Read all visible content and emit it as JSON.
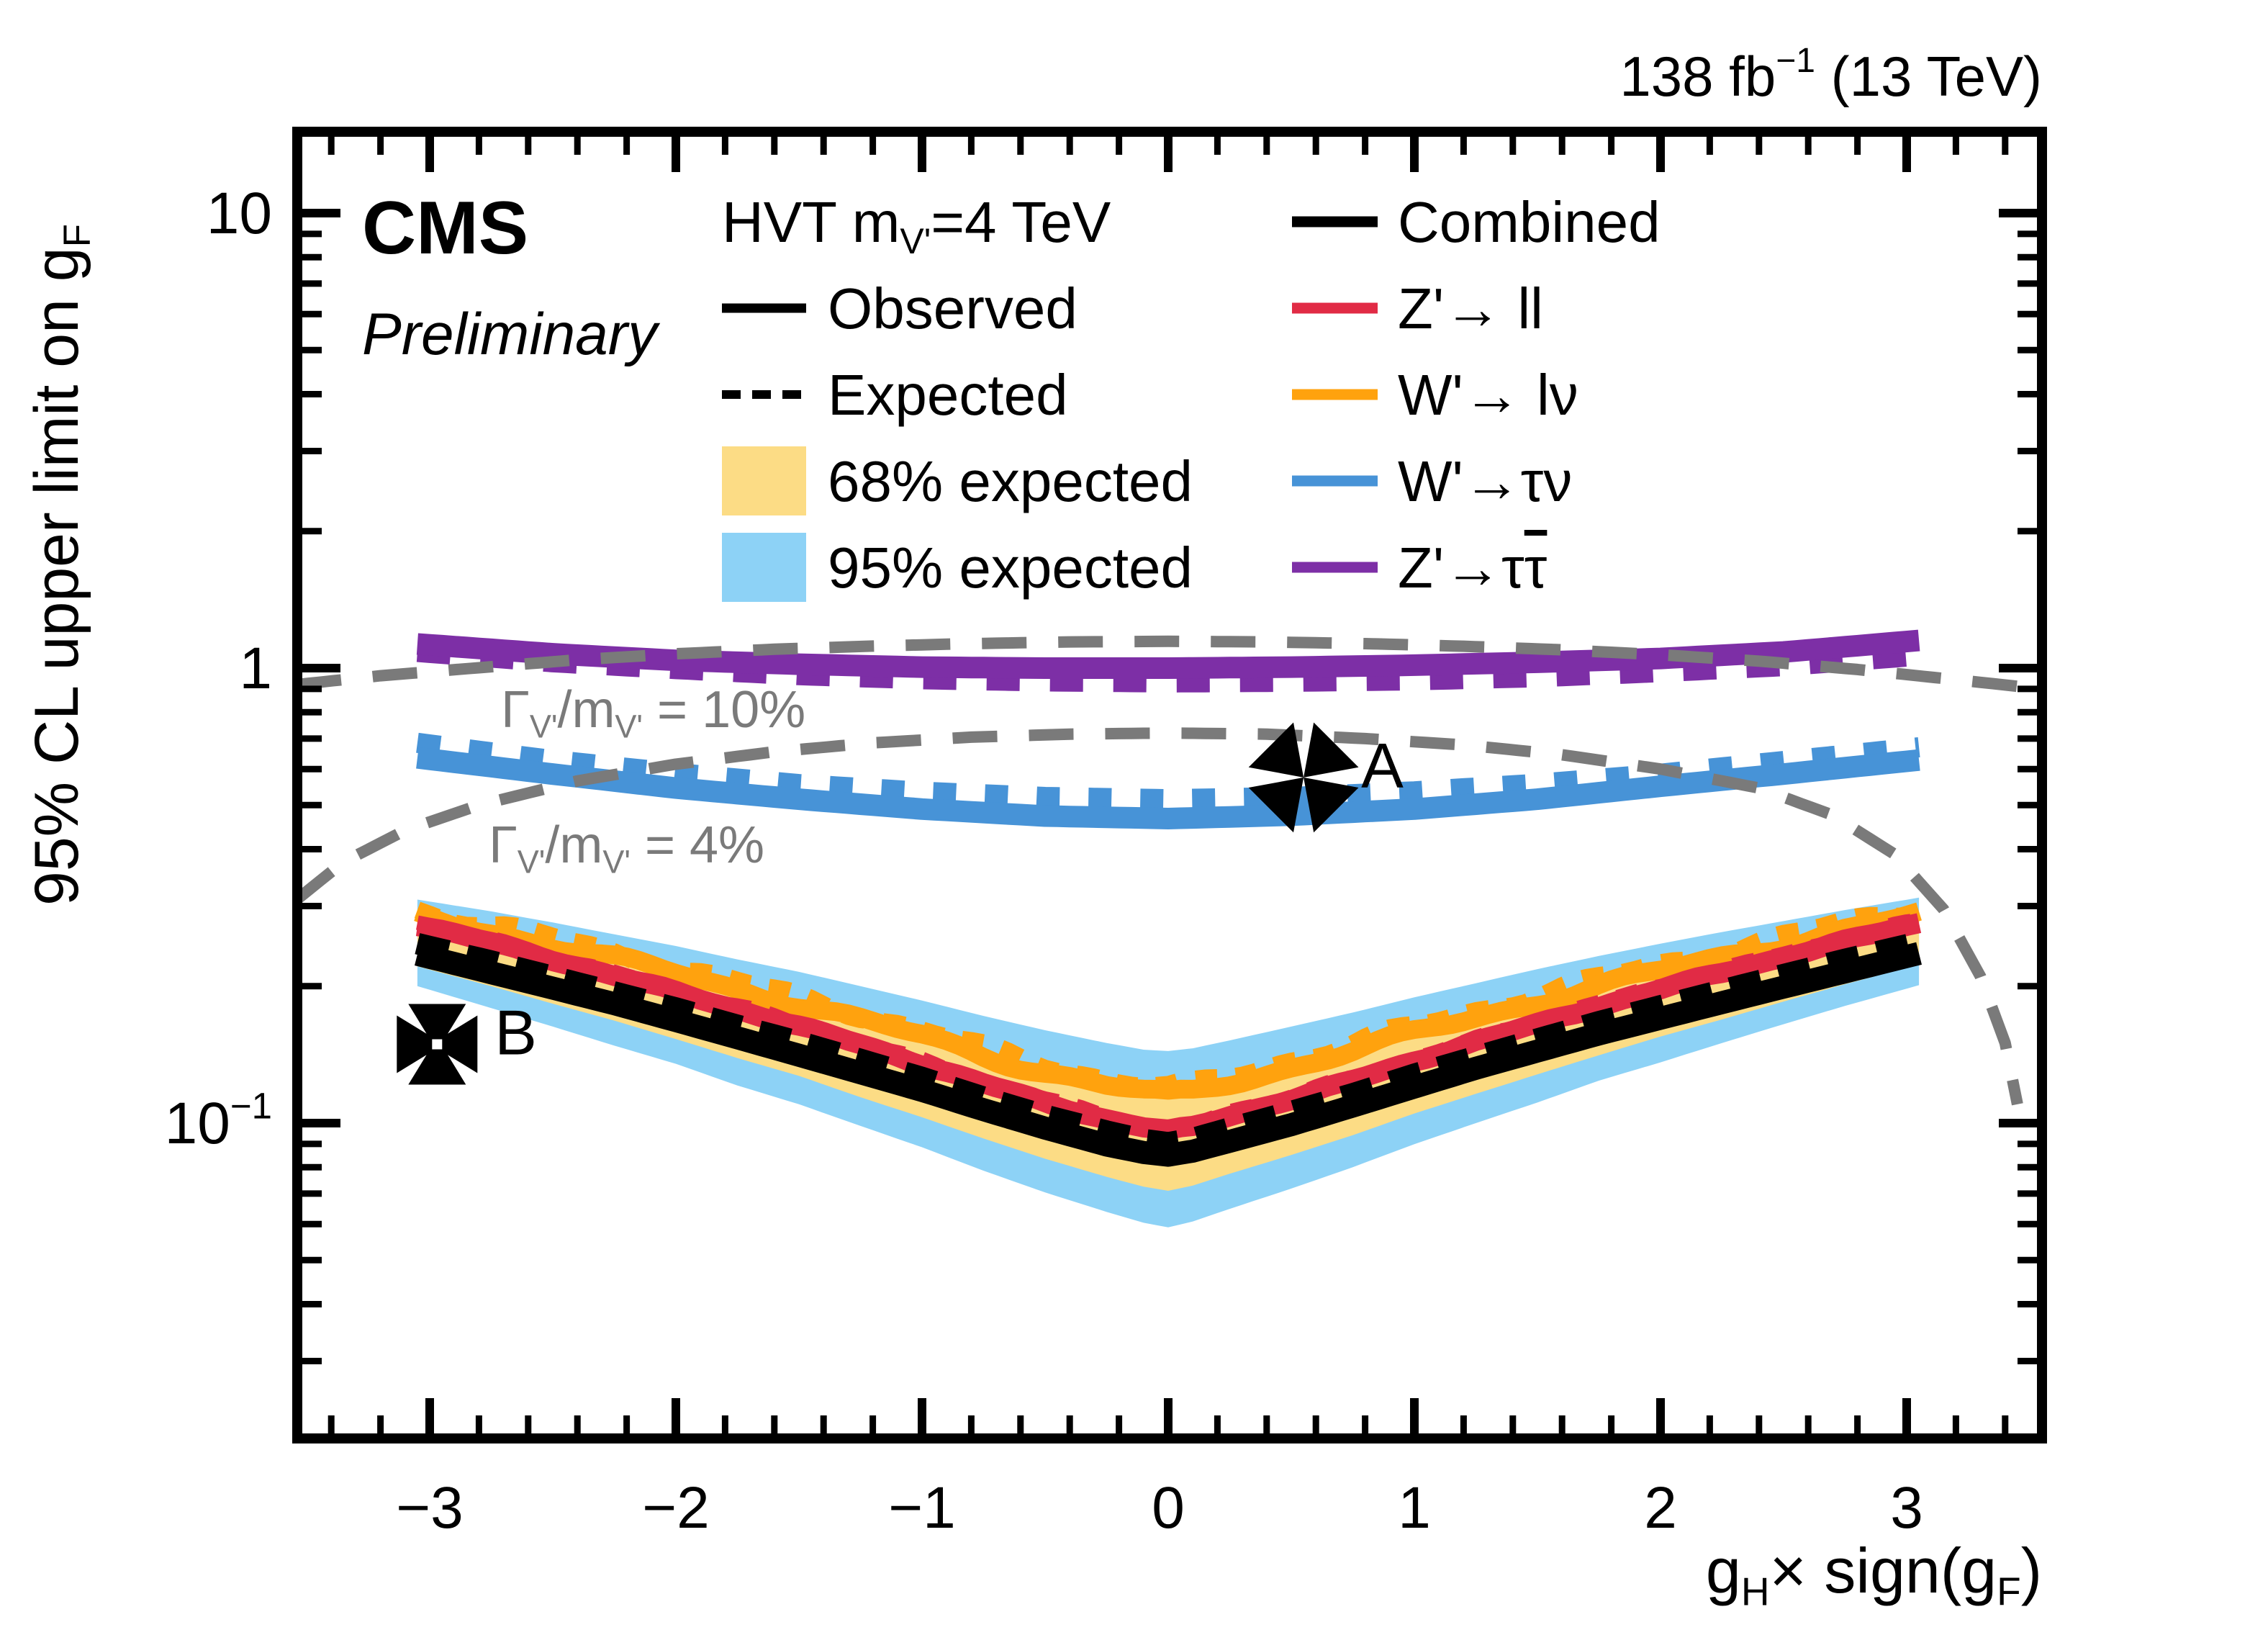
{
  "header": {
    "experiment": "CMS",
    "status": "Preliminary",
    "lumi_parts": [
      [
        "138 fb",
        ""
      ],
      [
        "−1",
        "sup"
      ],
      [
        " (13 TeV)",
        ""
      ]
    ]
  },
  "legend": {
    "left": [
      {
        "parts": [
          [
            "HVT m",
            ""
          ],
          [
            "V'",
            "sub"
          ],
          [
            "=4 TeV",
            ""
          ]
        ],
        "swatch": "none"
      },
      {
        "label": "Observed",
        "swatch": "solid-line"
      },
      {
        "label": "Expected",
        "swatch": "dashed-line"
      },
      {
        "label": "68% expected",
        "swatch": "yellow-box"
      },
      {
        "label": "95% expected",
        "swatch": "blue-box"
      }
    ],
    "right": [
      {
        "label": "Combined",
        "color": "#000000"
      },
      {
        "label": "Z'→ ll",
        "color": "#e12b45"
      },
      {
        "label": "W'→ lν",
        "color": "#ffa20e"
      },
      {
        "label": "W'→τν",
        "color": "#4793d7"
      },
      {
        "parts": [
          [
            "Z'→τ",
            ""
          ],
          [
            "τ",
            "bar"
          ]
        ],
        "color": "#7d2fa6"
      }
    ]
  },
  "annotations": {
    "width_10": {
      "parts": [
        [
          "Γ",
          ""
        ],
        [
          "V'",
          "sub"
        ],
        [
          "/m",
          ""
        ],
        [
          "V'",
          "sub"
        ],
        [
          " = 10%",
          ""
        ]
      ],
      "x": -2.71,
      "v": 0.742,
      "color": "#7a7a7a"
    },
    "width_4": {
      "parts": [
        [
          "Γ",
          ""
        ],
        [
          "V'",
          "sub"
        ],
        [
          "/m",
          ""
        ],
        [
          "V'",
          "sub"
        ],
        [
          " = 4%",
          ""
        ]
      ],
      "x": -2.76,
      "v": 0.374,
      "color": "#7a7a7a"
    },
    "point_A": {
      "label": "A",
      "x": 0.55,
      "v": 0.575,
      "marker": "pinwheel"
    },
    "point_B": {
      "label": "B",
      "x": -2.97,
      "v": 0.149,
      "marker": "cross-pattee"
    }
  },
  "chart_data": {
    "type": "line",
    "title": "",
    "xlabel_parts": [
      [
        "g",
        ""
      ],
      [
        "H",
        "sub"
      ],
      [
        "× sign(g",
        ""
      ],
      [
        "F",
        "sub"
      ],
      [
        ")",
        ""
      ]
    ],
    "ylabel_parts": [
      [
        "95% CL upper limit on g",
        ""
      ],
      [
        "F",
        "sub"
      ]
    ],
    "x_range": [
      -3.54,
      3.55
    ],
    "y_range": [
      0.0203,
      15.1
    ],
    "y_scale": "log",
    "grid": false,
    "x_majors": [
      -3,
      -2,
      -1,
      0,
      1,
      2,
      3
    ],
    "x_tick_labels": [
      "−3",
      "−2",
      "−1",
      "0",
      "1",
      "2",
      "3"
    ],
    "x_minor_step": 0.2,
    "y_majors": [
      {
        "v": 10,
        "parts": [
          [
            "10",
            ""
          ]
        ]
      },
      {
        "v": 1,
        "parts": [
          [
            "1",
            ""
          ]
        ]
      },
      {
        "v": 0.1,
        "parts": [
          [
            "10",
            ""
          ],
          [
            "−1",
            "sup"
          ]
        ]
      }
    ],
    "cluster_x": [
      -3.05,
      -2.75,
      -2.5,
      -2.25,
      -2,
      -1.75,
      -1.5,
      -1.25,
      -1,
      -0.75,
      -0.5,
      -0.25,
      -0.1,
      0,
      0.1,
      0.25,
      0.5,
      0.75,
      1,
      1.25,
      1.5,
      1.75,
      2,
      2.25,
      2.5,
      2.75,
      3.05
    ],
    "bands": [
      {
        "name": "95% expected",
        "color": "#8dd2f6",
        "x": "cluster",
        "lo": [
          0.2,
          0.179,
          0.163,
          0.148,
          0.135,
          0.121,
          0.11,
          0.0986,
          0.0885,
          0.0786,
          0.0704,
          0.0638,
          0.0604,
          0.059,
          0.0608,
          0.0648,
          0.0718,
          0.08,
          0.0899,
          0.1,
          0.111,
          0.124,
          0.136,
          0.15,
          0.165,
          0.181,
          0.201
        ],
        "hi": [
          0.31,
          0.292,
          0.276,
          0.26,
          0.245,
          0.229,
          0.215,
          0.2,
          0.186,
          0.172,
          0.16,
          0.15,
          0.145,
          0.144,
          0.146,
          0.152,
          0.163,
          0.175,
          0.189,
          0.203,
          0.218,
          0.233,
          0.248,
          0.263,
          0.278,
          0.294,
          0.313
        ]
      },
      {
        "name": "68% expected",
        "color": "#fcdc85",
        "x": "cluster",
        "lo": [
          0.221,
          0.2,
          0.183,
          0.168,
          0.153,
          0.139,
          0.127,
          0.114,
          0.103,
          0.0925,
          0.0835,
          0.0762,
          0.0725,
          0.071,
          0.0729,
          0.0774,
          0.0851,
          0.0941,
          0.105,
          0.116,
          0.128,
          0.141,
          0.155,
          0.169,
          0.185,
          0.202,
          0.223
        ],
        "hi": [
          0.28,
          0.26,
          0.243,
          0.227,
          0.212,
          0.196,
          0.183,
          0.169,
          0.156,
          0.143,
          0.131,
          0.123,
          0.118,
          0.117,
          0.119,
          0.124,
          0.134,
          0.145,
          0.158,
          0.171,
          0.185,
          0.2,
          0.214,
          0.229,
          0.245,
          0.262,
          0.282
        ]
      }
    ],
    "series": [
      {
        "name": "wprime-lnu-expected",
        "color": "#ffa20e",
        "width": 24,
        "dash": "30 26",
        "x": "cluster",
        "v": [
          0.295,
          0.272,
          0.255,
          0.237,
          0.22,
          0.204,
          0.189,
          0.174,
          0.16,
          0.146,
          0.135,
          0.125,
          0.121,
          0.119,
          0.121,
          0.127,
          0.138,
          0.149,
          0.163,
          0.177,
          0.192,
          0.207,
          0.223,
          0.239,
          0.257,
          0.275,
          0.297
        ],
        "jitter": {
          "a1": 0.02,
          "f1": 7.3,
          "p1": 1.1,
          "a2": 0.012,
          "f2": 16,
          "p2": 0.3
        }
      },
      {
        "name": "wprime-lnu-observed",
        "color": "#ffa20e",
        "width": 26,
        "dash": null,
        "x": "cluster",
        "v": [
          0.285,
          0.263,
          0.246,
          0.229,
          0.213,
          0.197,
          0.183,
          0.168,
          0.155,
          0.141,
          0.13,
          0.121,
          0.117,
          0.115,
          0.117,
          0.123,
          0.133,
          0.144,
          0.157,
          0.171,
          0.185,
          0.2,
          0.215,
          0.231,
          0.248,
          0.266,
          0.287
        ],
        "jitter": {
          "a1": 0.018,
          "f1": 6.1,
          "p1": 2.0,
          "a2": 0.011,
          "f2": 14,
          "p2": 1.2
        }
      },
      {
        "name": "zprime-ll-expected",
        "color": "#e12b45",
        "width": 20,
        "dash": "30 26",
        "x": "cluster",
        "v": [
          0.277,
          0.253,
          0.232,
          0.214,
          0.197,
          0.181,
          0.165,
          0.151,
          0.137,
          0.124,
          0.113,
          0.104,
          0.099,
          0.097,
          0.099,
          0.106,
          0.115,
          0.126,
          0.139,
          0.153,
          0.168,
          0.184,
          0.2,
          0.217,
          0.236,
          0.255,
          0.279
        ],
        "jitter": {
          "a1": 0.007,
          "f1": 11,
          "p1": 0.5,
          "a2": 0.005,
          "f2": 19,
          "p2": 2
        }
      },
      {
        "name": "zprime-ll-observed",
        "color": "#e12b45",
        "width": 28,
        "dash": null,
        "x": "cluster",
        "v": [
          0.273,
          0.249,
          0.229,
          0.211,
          0.194,
          0.178,
          0.163,
          0.149,
          0.135,
          0.122,
          0.111,
          0.102,
          0.098,
          0.096,
          0.098,
          0.104,
          0.113,
          0.124,
          0.137,
          0.151,
          0.165,
          0.181,
          0.197,
          0.214,
          0.232,
          0.251,
          0.275
        ],
        "jitter": {
          "a1": 0.006,
          "f1": 9,
          "p1": 1.4,
          "a2": 0.004,
          "f2": 21,
          "p2": 0.6
        }
      },
      {
        "name": "combined-expected",
        "color": "#000000",
        "width": 30,
        "dash": "44 26",
        "x": "cluster",
        "v": [
          0.248,
          0.227,
          0.21,
          0.194,
          0.179,
          0.164,
          0.151,
          0.138,
          0.126,
          0.114,
          0.104,
          0.096,
          0.092,
          0.0905,
          0.0925,
          0.0975,
          0.106,
          0.116,
          0.128,
          0.14,
          0.153,
          0.167,
          0.181,
          0.196,
          0.212,
          0.229,
          0.25
        ]
      },
      {
        "name": "combined-observed",
        "color": "#000000",
        "width": 32,
        "dash": null,
        "x": "cluster",
        "v": [
          0.235,
          0.214,
          0.198,
          0.183,
          0.168,
          0.154,
          0.141,
          0.129,
          0.118,
          0.107,
          0.0975,
          0.0895,
          0.0862,
          0.085,
          0.0868,
          0.0912,
          0.0992,
          0.109,
          0.12,
          0.132,
          0.144,
          0.157,
          0.17,
          0.184,
          0.199,
          0.215,
          0.236
        ]
      },
      {
        "name": "wprime-taunu-expected",
        "color": "#4793d7",
        "width": 28,
        "dash": "32 40",
        "x": [
          -3.05,
          -2.5,
          -2,
          -1.5,
          -1,
          -0.5,
          0,
          0.5,
          1,
          1.5,
          2,
          2.5,
          3.05
        ],
        "v": [
          0.685,
          0.628,
          0.588,
          0.556,
          0.535,
          0.521,
          0.515,
          0.521,
          0.536,
          0.557,
          0.586,
          0.625,
          0.67
        ]
      },
      {
        "name": "wprime-taunu-observed",
        "color": "#4793d7",
        "width": 30,
        "dash": null,
        "x": [
          -3.05,
          -2.5,
          -2,
          -1.5,
          -1,
          -0.5,
          0,
          0.5,
          1,
          1.5,
          2,
          2.5,
          3.05
        ],
        "v": [
          0.635,
          0.585,
          0.545,
          0.515,
          0.49,
          0.473,
          0.467,
          0.475,
          0.49,
          0.515,
          0.55,
          0.585,
          0.628
        ]
      },
      {
        "name": "zprime-tautau-expected",
        "color": "#7d2fa6",
        "width": 28,
        "dash": "46 42",
        "x": [
          -3.05,
          -2.5,
          -2,
          -1.5,
          -1,
          -0.5,
          0,
          0.5,
          1,
          1.5,
          2,
          2.5,
          3.05
        ],
        "v": [
          1.085,
          1.03,
          0.995,
          0.965,
          0.945,
          0.935,
          0.93,
          0.933,
          0.94,
          0.955,
          0.98,
          1.01,
          1.065
        ]
      },
      {
        "name": "zprime-tautau-observed",
        "color": "#7d2fa6",
        "width": 30,
        "dash": null,
        "x": [
          -3.05,
          -2.5,
          -2,
          -1.5,
          -1,
          -0.5,
          0,
          0.5,
          1,
          1.5,
          2,
          2.5,
          3.05
        ],
        "v": [
          1.13,
          1.075,
          1.04,
          1.02,
          1.005,
          1.0,
          1.0,
          1.005,
          1.015,
          1.03,
          1.05,
          1.085,
          1.15
        ]
      },
      {
        "name": "width-contour-10pct",
        "color": "#7a7a7a",
        "width": 16,
        "dash": "62 44",
        "x": [
          -3.54,
          -3.2,
          -2.8,
          -2.4,
          -2,
          -1.6,
          -1.2,
          -0.8,
          -0.4,
          0,
          0.4,
          0.8,
          1.2,
          1.6,
          2,
          2.4,
          2.8,
          3.2,
          3.55
        ],
        "v": [
          0.92,
          0.962,
          1.002,
          1.043,
          1.075,
          1.1,
          1.118,
          1.132,
          1.142,
          1.145,
          1.142,
          1.132,
          1.117,
          1.097,
          1.07,
          1.036,
          0.993,
          0.943,
          0.9
        ]
      },
      {
        "name": "width-contour-4pct",
        "color": "#7a7a7a",
        "width": 16,
        "dash": "62 44",
        "x": [
          -3.54,
          -3.35,
          -3.1,
          -2.8,
          -2.4,
          -2,
          -1.6,
          -1.2,
          -0.8,
          -0.4,
          0,
          0.4,
          0.8,
          1.2,
          1.6,
          2,
          2.4,
          2.7,
          2.95,
          3.15,
          3.3,
          3.4,
          3.45
        ],
        "v": [
          0.31,
          0.375,
          0.44,
          0.5,
          0.565,
          0.615,
          0.655,
          0.685,
          0.705,
          0.716,
          0.72,
          0.716,
          0.7,
          0.678,
          0.645,
          0.6,
          0.545,
          0.475,
          0.39,
          0.295,
          0.21,
          0.15,
          0.11
        ]
      }
    ]
  }
}
